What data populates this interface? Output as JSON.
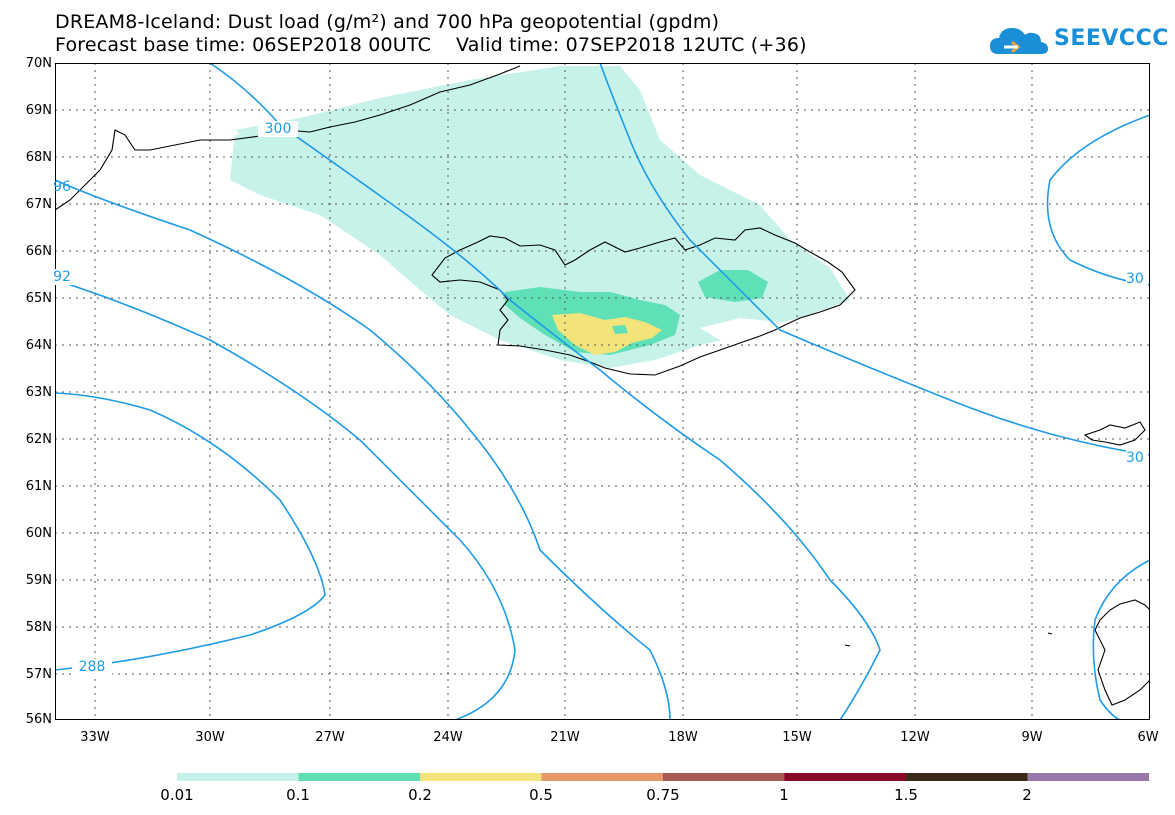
{
  "header": {
    "title_line1": "DREAM8-Iceland: Dust load (g/m²) and 700 hPa geopotential (gpdm)",
    "base_time": "Forecast base time: 06SEP2018 00UTC",
    "valid_time": "Valid time: 07SEP2018 12UTC (+36)"
  },
  "logo": {
    "text": "SEEVCCC",
    "icon": "cloud-icon"
  },
  "map": {
    "lat_labels": [
      "70N",
      "69N",
      "68N",
      "67N",
      "66N",
      "65N",
      "64N",
      "63N",
      "62N",
      "61N",
      "60N",
      "59N",
      "58N",
      "57N",
      "56N"
    ],
    "lon_labels": [
      "33W",
      "30W",
      "27W",
      "24W",
      "21W",
      "18W",
      "15W",
      "12W",
      "9W",
      "6W"
    ],
    "contour_labels": {
      "c300": "300",
      "c96": "96",
      "c92": "92",
      "c288": "288",
      "c30a": "30",
      "c30b": "30"
    },
    "dust_colors": {
      "c001": "#c6f2ea",
      "c01": "#5fe0b6",
      "c02": "#f2e47a"
    },
    "contour_color": "#1e9be6"
  },
  "colorbar": {
    "labels": [
      "0.01",
      "0.1",
      "0.2",
      "0.5",
      "0.75",
      "1",
      "1.5",
      "2"
    ],
    "colors": [
      "#c6f2ea",
      "#5fe0b6",
      "#f2e47a",
      "#e8966a",
      "#a85a50",
      "#8a0a2a",
      "#3a2a1a",
      "#9a78aa"
    ]
  }
}
